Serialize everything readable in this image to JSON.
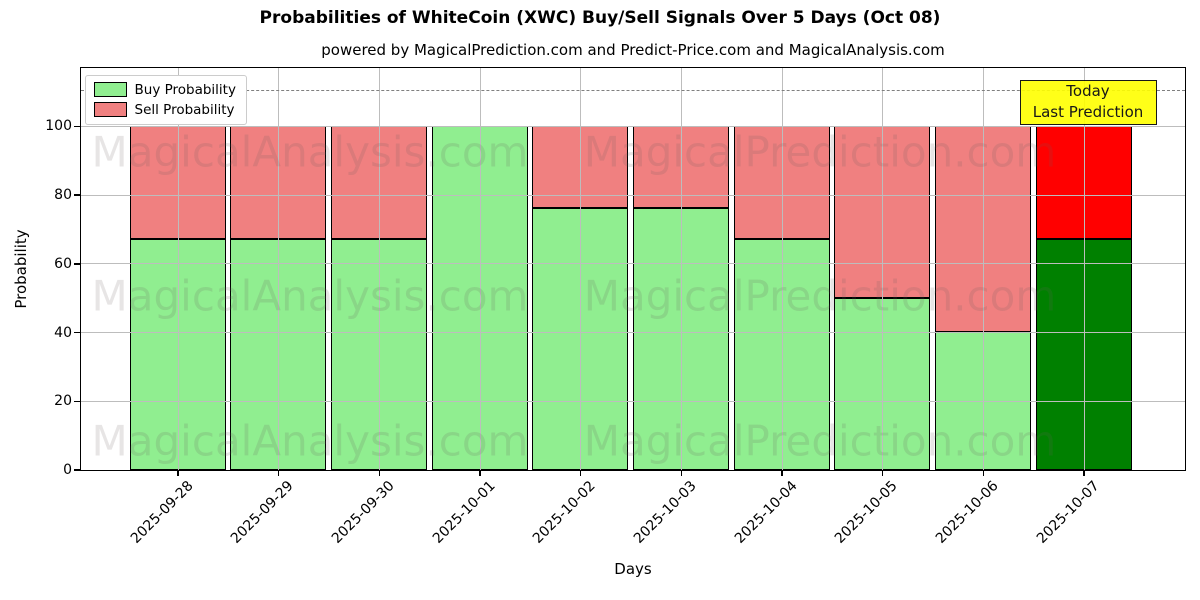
{
  "header": {
    "title": "Probabilities of WhiteCoin (XWC) Buy/Sell Signals Over 5 Days (Oct 08)",
    "subtitle": "powered by MagicalPrediction.com and Predict-Price.com and MagicalAnalysis.com"
  },
  "chart_data": {
    "type": "bar",
    "stacked": true,
    "title": "Probabilities of WhiteCoin (XWC) Buy/Sell Signals Over 5 Days (Oct 08)",
    "xlabel": "Days",
    "ylabel": "Probability",
    "categories": [
      "2025-09-28",
      "2025-09-29",
      "2025-09-30",
      "2025-10-01",
      "2025-10-02",
      "2025-10-03",
      "2025-10-04",
      "2025-10-05",
      "2025-10-06",
      "2025-10-07"
    ],
    "series": [
      {
        "name": "Buy Probability",
        "legend_color": "#90EE90",
        "values": [
          67,
          67,
          67,
          100,
          76,
          76,
          67,
          50,
          40,
          67
        ],
        "bar_colors": [
          "#90EE90",
          "#90EE90",
          "#90EE90",
          "#90EE90",
          "#90EE90",
          "#90EE90",
          "#90EE90",
          "#90EE90",
          "#90EE90",
          "#008000"
        ]
      },
      {
        "name": "Sell Probability",
        "legend_color": "#F08080",
        "values": [
          33,
          33,
          33,
          0,
          24,
          24,
          33,
          50,
          60,
          33
        ],
        "bar_colors": [
          "#F08080",
          "#F08080",
          "#F08080",
          "#F08080",
          "#F08080",
          "#F08080",
          "#F08080",
          "#F08080",
          "#F08080",
          "#FF0000"
        ]
      }
    ],
    "yticks": [
      0,
      20,
      40,
      60,
      80,
      100
    ],
    "ylim": [
      0,
      117
    ],
    "grid": true,
    "legend_position": "upper-left",
    "dashed_line_y": 110,
    "bar_edge_color": "#000000"
  },
  "annotation": {
    "line1": "Today",
    "line2": "Last Prediction",
    "bg_color": "#FFFF00",
    "border_color": "#000000"
  },
  "watermarks": {
    "left_text": "MagicalAnalysis.com",
    "right_text": "MagicalPrediction.com"
  }
}
